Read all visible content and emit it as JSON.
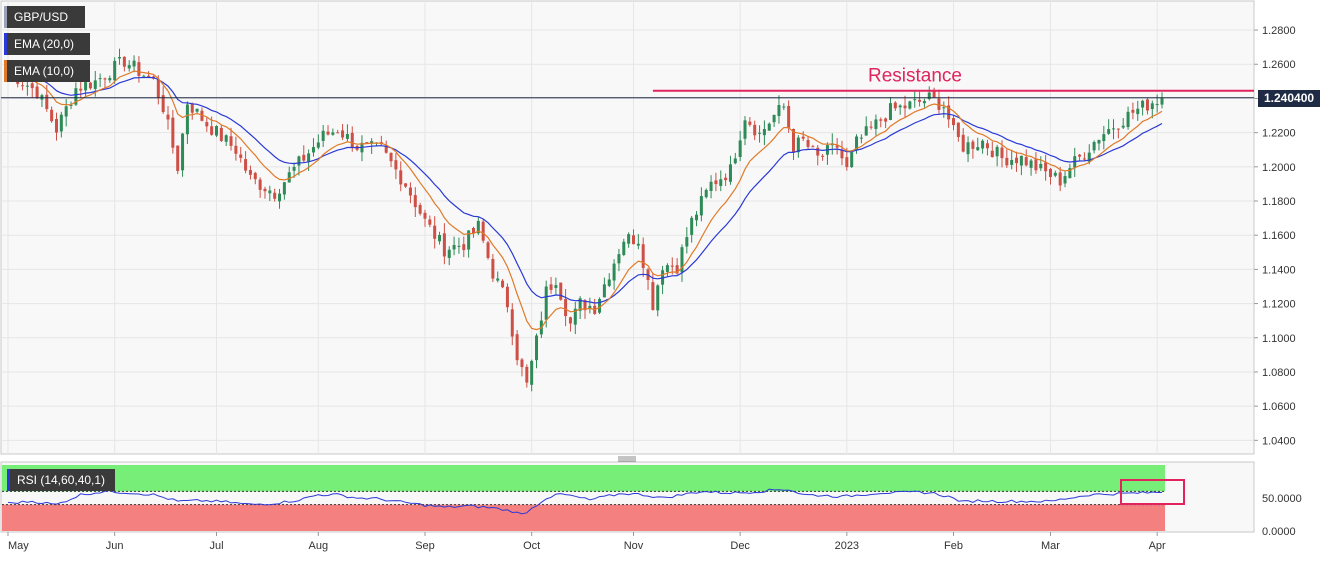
{
  "legend": {
    "symbol": "GBP/USD",
    "ema20": "EMA (20,0)",
    "ema10": "EMA (10,0)",
    "rsi": "RSI (14,60,40,1)"
  },
  "colors": {
    "bull": "#2e8b57",
    "bear": "#cd4f45",
    "ema20": "#2a3ad6",
    "ema10": "#e07a28",
    "resistance": "#e0245e",
    "rsi_line": "#2a3ad6",
    "rsi_upper_zone": "#77ee77",
    "rsi_lower_zone": "#f58080",
    "highlight_box": "#e0245e",
    "price_line": "#1f2a44"
  },
  "chart_data": {
    "type": "candlestick",
    "title": "GBP/USD",
    "xlabel": "",
    "ylabel": "",
    "grid": true,
    "price_axis": {
      "ylim": [
        1.032,
        1.297
      ],
      "ticks": [
        "1.2800",
        "1.2600",
        "1.2400",
        "1.2200",
        "1.2000",
        "1.1800",
        "1.1600",
        "1.1400",
        "1.1200",
        "1.1000",
        "1.0800",
        "1.0600",
        "1.0400"
      ],
      "tick_values": [
        1.28,
        1.26,
        1.24,
        1.22,
        1.2,
        1.18,
        1.16,
        1.14,
        1.12,
        1.1,
        1.08,
        1.06,
        1.04
      ],
      "current_price": 1.2404,
      "current_price_label": "1.240400"
    },
    "x_axis": {
      "labels": [
        "May",
        "Jun",
        "Jul",
        "Aug",
        "Sep",
        "Oct",
        "Nov",
        "Dec",
        "2023",
        "Feb",
        "Mar",
        "Apr"
      ],
      "label_day_index": [
        0,
        22,
        43,
        64,
        86,
        108,
        129,
        151,
        173,
        195,
        215,
        237
      ]
    },
    "annotation": {
      "text": "Resistance",
      "price": 1.2445,
      "start_day": 133
    },
    "ohlc_anchor_closes": [
      [
        0,
        1.256
      ],
      [
        6,
        1.244
      ],
      [
        10,
        1.222
      ],
      [
        14,
        1.246
      ],
      [
        18,
        1.25
      ],
      [
        24,
        1.262
      ],
      [
        30,
        1.25
      ],
      [
        32,
        1.235
      ],
      [
        35,
        1.2
      ],
      [
        37,
        1.238
      ],
      [
        41,
        1.225
      ],
      [
        47,
        1.21
      ],
      [
        50,
        1.193
      ],
      [
        55,
        1.185
      ],
      [
        60,
        1.202
      ],
      [
        65,
        1.218
      ],
      [
        68,
        1.222
      ],
      [
        72,
        1.212
      ],
      [
        77,
        1.21
      ],
      [
        82,
        1.19
      ],
      [
        86,
        1.168
      ],
      [
        90,
        1.152
      ],
      [
        94,
        1.155
      ],
      [
        97,
        1.165
      ],
      [
        100,
        1.138
      ],
      [
        103,
        1.12
      ],
      [
        105,
        1.09
      ],
      [
        107,
        1.072
      ],
      [
        109,
        1.098
      ],
      [
        111,
        1.127
      ],
      [
        113,
        1.135
      ],
      [
        116,
        1.108
      ],
      [
        118,
        1.12
      ],
      [
        121,
        1.118
      ],
      [
        124,
        1.138
      ],
      [
        127,
        1.158
      ],
      [
        130,
        1.158
      ],
      [
        133,
        1.12
      ],
      [
        135,
        1.143
      ],
      [
        138,
        1.142
      ],
      [
        141,
        1.168
      ],
      [
        145,
        1.19
      ],
      [
        149,
        1.198
      ],
      [
        152,
        1.23
      ],
      [
        155,
        1.219
      ],
      [
        158,
        1.23
      ],
      [
        160,
        1.235
      ],
      [
        162,
        1.212
      ],
      [
        164,
        1.215
      ],
      [
        167,
        1.205
      ],
      [
        171,
        1.212
      ],
      [
        173,
        1.198
      ],
      [
        175,
        1.214
      ],
      [
        178,
        1.222
      ],
      [
        182,
        1.233
      ],
      [
        186,
        1.236
      ],
      [
        190,
        1.24
      ],
      [
        193,
        1.236
      ],
      [
        195,
        1.22
      ],
      [
        197,
        1.212
      ],
      [
        201,
        1.215
      ],
      [
        205,
        1.205
      ],
      [
        209,
        1.205
      ],
      [
        213,
        1.198
      ],
      [
        215,
        1.195
      ],
      [
        217,
        1.192
      ],
      [
        219,
        1.2
      ],
      [
        222,
        1.208
      ],
      [
        225,
        1.218
      ],
      [
        228,
        1.224
      ],
      [
        232,
        1.232
      ],
      [
        236,
        1.238
      ],
      [
        238,
        1.2404
      ]
    ],
    "rsi": {
      "ylim": [
        0,
        100
      ],
      "levels": [
        60,
        40
      ],
      "ticks": [
        "50.0000",
        "0.0000"
      ],
      "tick_values": [
        50,
        0
      ],
      "anchors": [
        [
          0,
          42
        ],
        [
          5,
          45
        ],
        [
          10,
          40
        ],
        [
          15,
          55
        ],
        [
          20,
          60
        ],
        [
          25,
          58
        ],
        [
          30,
          55
        ],
        [
          35,
          45
        ],
        [
          40,
          46
        ],
        [
          45,
          44
        ],
        [
          50,
          40
        ],
        [
          55,
          42
        ],
        [
          60,
          47
        ],
        [
          64,
          55
        ],
        [
          68,
          55
        ],
        [
          72,
          50
        ],
        [
          76,
          49
        ],
        [
          80,
          45
        ],
        [
          85,
          40
        ],
        [
          90,
          36
        ],
        [
          95,
          38
        ],
        [
          100,
          35
        ],
        [
          104,
          30
        ],
        [
          106,
          25
        ],
        [
          108,
          34
        ],
        [
          111,
          50
        ],
        [
          114,
          56
        ],
        [
          117,
          52
        ],
        [
          120,
          47
        ],
        [
          123,
          52
        ],
        [
          127,
          57
        ],
        [
          131,
          55
        ],
        [
          135,
          50
        ],
        [
          139,
          55
        ],
        [
          143,
          60
        ],
        [
          147,
          58
        ],
        [
          151,
          58
        ],
        [
          155,
          60
        ],
        [
          159,
          63
        ],
        [
          161,
          63
        ],
        [
          164,
          55
        ],
        [
          168,
          54
        ],
        [
          172,
          52
        ],
        [
          176,
          55
        ],
        [
          180,
          58
        ],
        [
          184,
          58
        ],
        [
          188,
          59
        ],
        [
          191,
          57
        ],
        [
          194,
          52
        ],
        [
          197,
          44
        ],
        [
          200,
          46
        ],
        [
          204,
          45
        ],
        [
          208,
          45
        ],
        [
          212,
          45
        ],
        [
          215,
          45
        ],
        [
          219,
          50
        ],
        [
          223,
          55
        ],
        [
          227,
          56
        ],
        [
          231,
          57
        ],
        [
          235,
          58
        ],
        [
          238,
          59
        ]
      ]
    }
  }
}
